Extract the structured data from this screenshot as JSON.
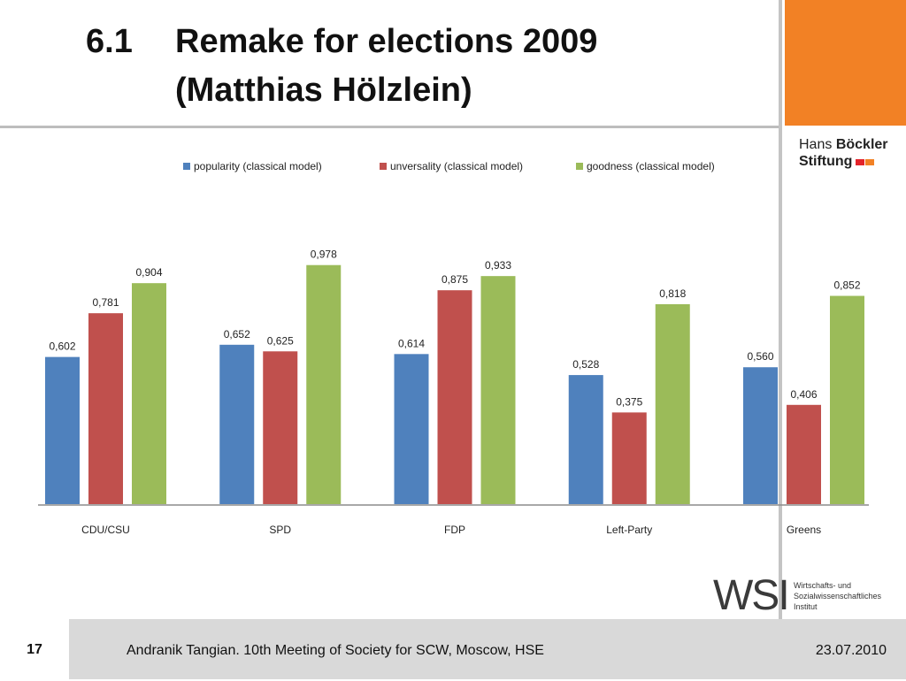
{
  "slide": {
    "number_label": "6.1",
    "title_line1": "Remake for elections 2009",
    "title_line2": "(Matthias Hölzlein)"
  },
  "logos": {
    "hb_line1_normal": "Hans",
    "hb_line1_bold": "Böckler",
    "hb_line2": "Stiftung",
    "hb_square_colors": [
      "#e3232a",
      "#f28125"
    ],
    "wsi_letters": "WSI",
    "wsi_line1": "Wirtschafts- und",
    "wsi_line2": "Sozialwissenschaftliches",
    "wsi_line3": "Institut"
  },
  "footer": {
    "page_number": "17",
    "text": "Andranik Tangian. 10th Meeting of Society for SCW, Moscow, HSE",
    "date": "23.07.2010"
  },
  "colors": {
    "accent_orange": "#f28125",
    "series_blue": "#4f81bd",
    "series_red": "#c0504d",
    "series_green": "#9bbb59"
  },
  "chart_data": {
    "type": "bar",
    "categories": [
      "CDU/CSU",
      "SPD",
      "FDP",
      "Left-Party",
      "Greens"
    ],
    "series": [
      {
        "name": "popularity (classical model)",
        "color": "#4f81bd",
        "values": [
          0.602,
          0.652,
          0.614,
          0.528,
          0.56
        ],
        "labels": [
          "0,602",
          "0,652",
          "0,614",
          "0,528",
          "0,560"
        ]
      },
      {
        "name": "unversality (classical model)",
        "color": "#c0504d",
        "values": [
          0.781,
          0.625,
          0.875,
          0.375,
          0.406
        ],
        "labels": [
          "0,781",
          "0,625",
          "0,875",
          "0,375",
          "0,406"
        ]
      },
      {
        "name": "goodness (classical model)",
        "color": "#9bbb59",
        "values": [
          0.904,
          0.978,
          0.933,
          0.818,
          0.852
        ],
        "labels": [
          "0,904",
          "0,978",
          "0,933",
          "0,818",
          "0,852"
        ]
      }
    ],
    "ylim": [
      0,
      1.1
    ],
    "legend": "top",
    "grid": false,
    "title": "",
    "xlabel": "",
    "ylabel": ""
  }
}
